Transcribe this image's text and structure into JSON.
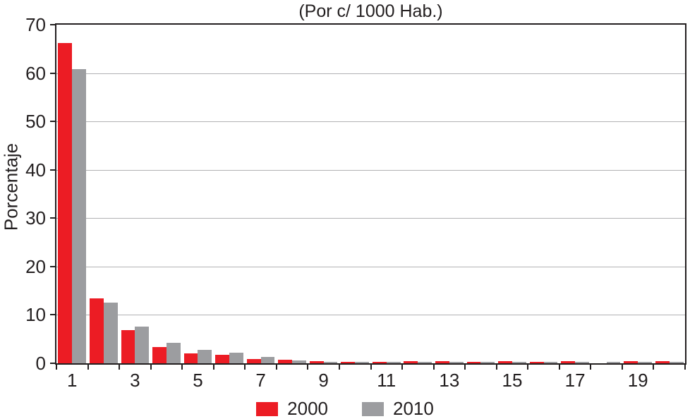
{
  "chart_data": {
    "type": "bar",
    "title": "(Por c/ 1000 Hab.)",
    "xlabel": "",
    "ylabel": "Porcentaje",
    "ylim": [
      0,
      70
    ],
    "y_ticks": [
      0,
      10,
      20,
      30,
      40,
      50,
      60,
      70
    ],
    "categories": [
      1,
      2,
      3,
      4,
      5,
      6,
      7,
      8,
      9,
      10,
      11,
      12,
      13,
      14,
      15,
      16,
      17,
      18,
      19,
      20
    ],
    "labeled_categories": [
      1,
      3,
      5,
      7,
      9,
      11,
      13,
      15,
      17,
      19
    ],
    "series": [
      {
        "name": "2000",
        "color": "#EC1C24",
        "values": [
          66.2,
          13.4,
          6.9,
          3.4,
          2.1,
          1.8,
          0.95,
          0.8,
          0.4,
          0.35,
          0.35,
          0.4,
          0.4,
          0.35,
          0.4,
          0.35,
          0.4,
          0,
          0.4,
          0.4
        ]
      },
      {
        "name": "2010",
        "color": "#9C9DA0",
        "values": [
          60.8,
          12.5,
          7.6,
          4.2,
          2.8,
          2.2,
          1.35,
          0.6,
          0.3,
          0.3,
          0.3,
          0.3,
          0.3,
          0.3,
          0.3,
          0.3,
          0.3,
          0.35,
          0.3,
          0.3
        ]
      }
    ],
    "grid": "horizontal",
    "legend_position": "bottom",
    "colors": {
      "axis": "#231F20",
      "gridline": "#b1b1b3",
      "background": "#ffffff"
    }
  }
}
